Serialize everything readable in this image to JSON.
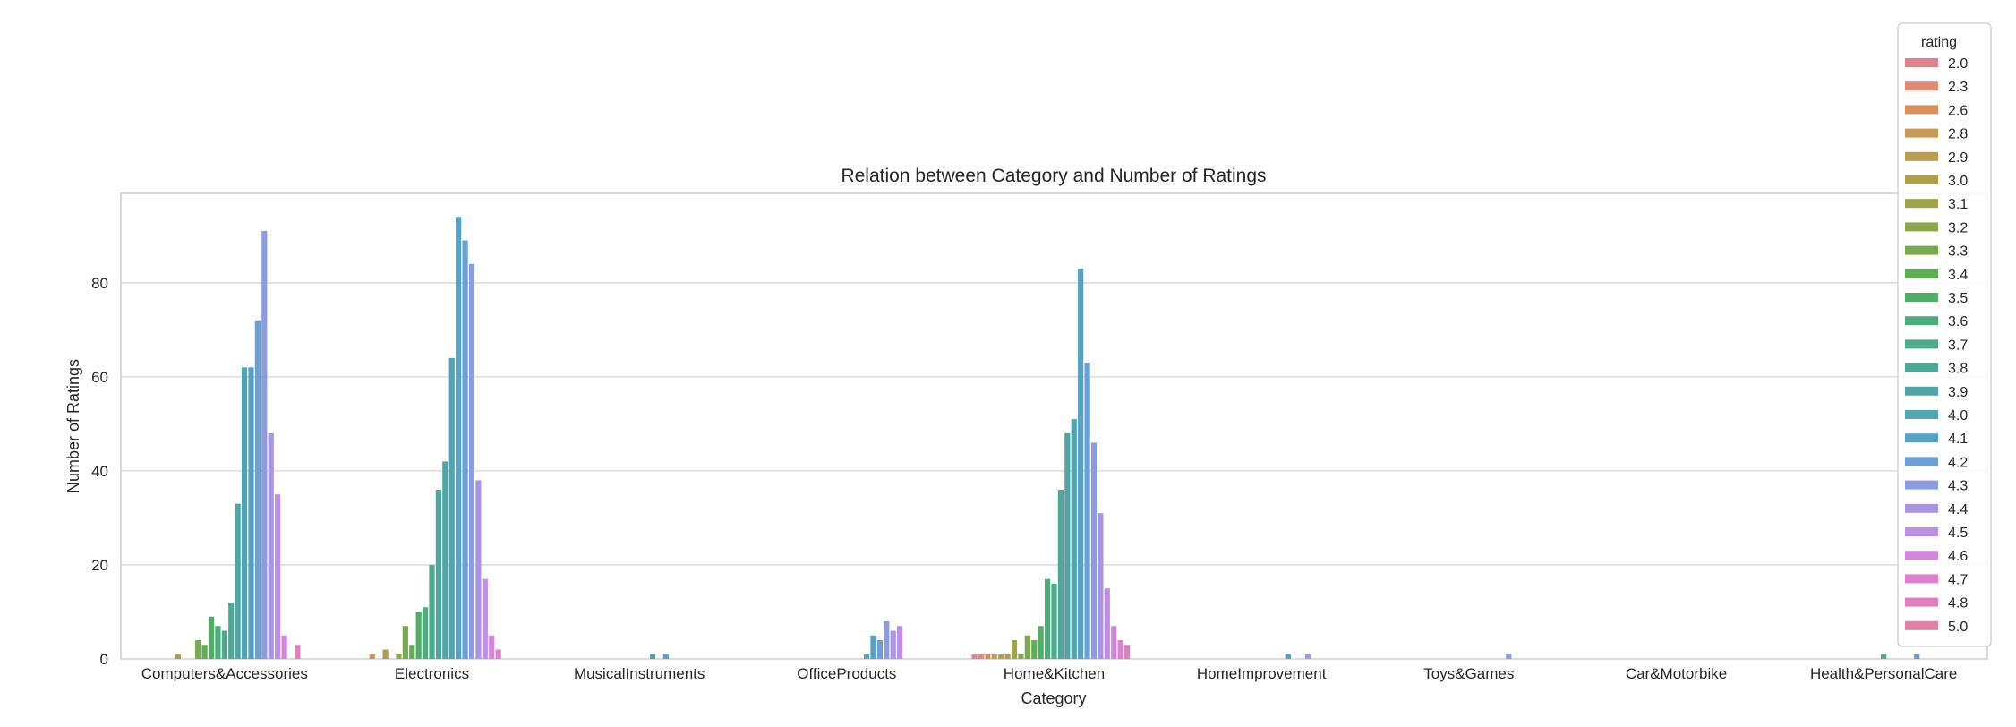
{
  "chart_data": {
    "type": "bar",
    "title": "Relation between Category and Number of Ratings",
    "xlabel": "Category",
    "ylabel": "Number of Ratings",
    "ylim": [
      0,
      99
    ],
    "yticks": [
      0,
      20,
      40,
      60,
      80
    ],
    "grid": "horizontal",
    "legend": {
      "title": "rating",
      "placement": "right, outside top"
    },
    "categories": [
      "Computers&Accessories",
      "Electronics",
      "MusicalInstruments",
      "OfficeProducts",
      "Home&Kitchen",
      "HomeImprovement",
      "Toys&Games",
      "Car&Motorbike",
      "Health&PersonalCare"
    ],
    "series": [
      {
        "name": "2.0",
        "color": "#e1828e",
        "values": [
          0,
          0,
          0,
          0,
          1,
          0,
          0,
          0,
          0
        ]
      },
      {
        "name": "2.3",
        "color": "#df8a75",
        "values": [
          0,
          0,
          0,
          0,
          1,
          0,
          0,
          0,
          0
        ]
      },
      {
        "name": "2.6",
        "color": "#d8915d",
        "values": [
          0,
          0,
          0,
          0,
          1,
          0,
          0,
          0,
          0
        ]
      },
      {
        "name": "2.8",
        "color": "#c99852",
        "values": [
          0,
          1,
          0,
          0,
          1,
          0,
          0,
          0,
          0
        ]
      },
      {
        "name": "2.9",
        "color": "#bb9b4f",
        "values": [
          0,
          0,
          0,
          0,
          1,
          0,
          0,
          0,
          0
        ]
      },
      {
        "name": "3.0",
        "color": "#ad9f4b",
        "values": [
          1,
          2,
          0,
          0,
          1,
          0,
          0,
          0,
          0
        ]
      },
      {
        "name": "3.1",
        "color": "#9ea449",
        "values": [
          0,
          0,
          0,
          0,
          4,
          0,
          0,
          0,
          0
        ]
      },
      {
        "name": "3.2",
        "color": "#8ca84a",
        "values": [
          0,
          1,
          0,
          0,
          1,
          0,
          0,
          0,
          0
        ]
      },
      {
        "name": "3.3",
        "color": "#77ab4c",
        "values": [
          4,
          7,
          0,
          0,
          5,
          0,
          0,
          0,
          0
        ]
      },
      {
        "name": "3.4",
        "color": "#5fae54",
        "values": [
          3,
          3,
          0,
          0,
          4,
          0,
          0,
          0,
          0
        ]
      },
      {
        "name": "3.5",
        "color": "#50ae67",
        "values": [
          9,
          10,
          0,
          0,
          7,
          0,
          0,
          0,
          0
        ]
      },
      {
        "name": "3.6",
        "color": "#4dac7c",
        "values": [
          7,
          11,
          0,
          0,
          17,
          0,
          0,
          0,
          0
        ]
      },
      {
        "name": "3.7",
        "color": "#4daa8c",
        "values": [
          6,
          20,
          0,
          0,
          16,
          0,
          0,
          0,
          1
        ]
      },
      {
        "name": "3.8",
        "color": "#4da89a",
        "values": [
          12,
          36,
          0,
          0,
          36,
          0,
          0,
          0,
          0
        ]
      },
      {
        "name": "3.9",
        "color": "#4ea6a7",
        "values": [
          33,
          42,
          1,
          0,
          48,
          0,
          0,
          0,
          0
        ]
      },
      {
        "name": "4.0",
        "color": "#50a5b4",
        "values": [
          62,
          64,
          0,
          1,
          51,
          0,
          0,
          0,
          0
        ]
      },
      {
        "name": "4.1",
        "color": "#54a3c4",
        "values": [
          62,
          94,
          1,
          5,
          83,
          1,
          0,
          0,
          0
        ]
      },
      {
        "name": "4.2",
        "color": "#6aa0d6",
        "values": [
          72,
          89,
          0,
          4,
          63,
          0,
          0,
          0,
          1
        ]
      },
      {
        "name": "4.3",
        "color": "#8d9be0",
        "values": [
          91,
          84,
          0,
          8,
          46,
          0,
          1,
          0,
          0
        ]
      },
      {
        "name": "4.4",
        "color": "#aa95e5",
        "values": [
          48,
          38,
          0,
          6,
          31,
          1,
          0,
          0,
          0
        ]
      },
      {
        "name": "4.5",
        "color": "#c08ee5",
        "values": [
          35,
          17,
          0,
          7,
          15,
          0,
          0,
          0,
          0
        ]
      },
      {
        "name": "4.6",
        "color": "#d287dd",
        "values": [
          5,
          5,
          0,
          0,
          7,
          0,
          0,
          0,
          0
        ]
      },
      {
        "name": "4.7",
        "color": "#df80cf",
        "values": [
          0,
          2,
          0,
          0,
          4,
          0,
          0,
          0,
          0
        ]
      },
      {
        "name": "4.8",
        "color": "#e07fbb",
        "values": [
          3,
          0,
          0,
          0,
          3,
          0,
          0,
          0,
          0
        ]
      },
      {
        "name": "5.0",
        "color": "#e081a6",
        "values": [
          0,
          0,
          0,
          0,
          0,
          0,
          0,
          0,
          0
        ]
      }
    ]
  }
}
